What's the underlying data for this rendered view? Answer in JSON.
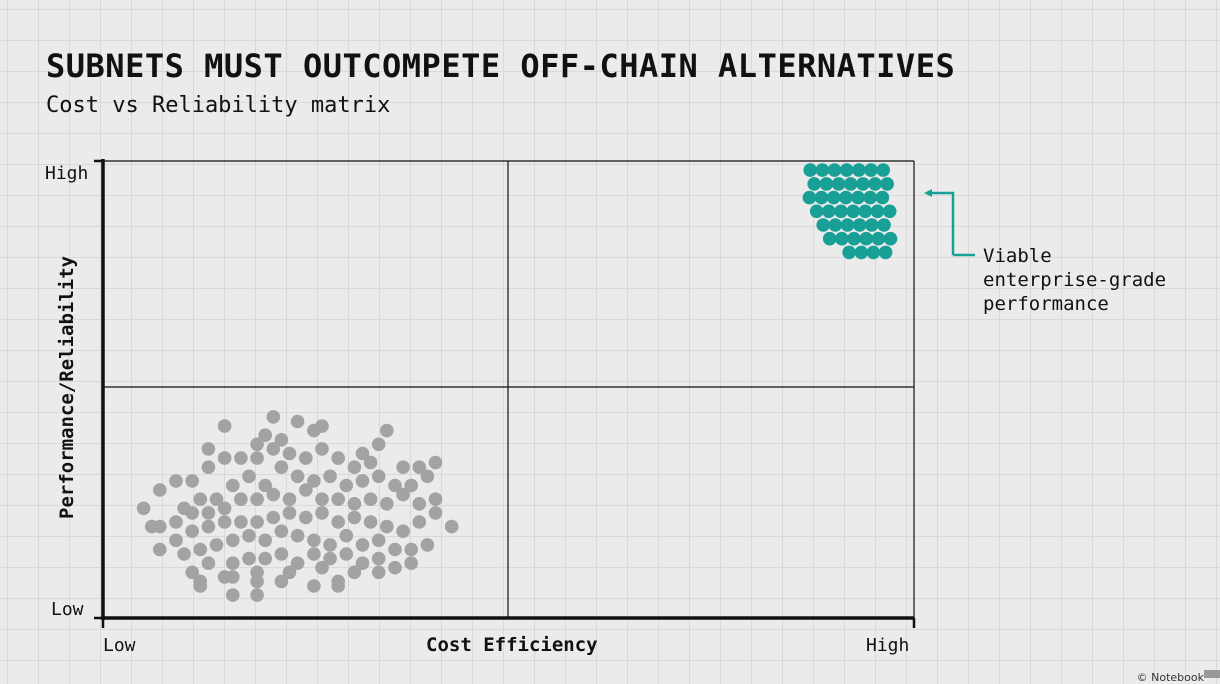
{
  "title": "SUBNETS MUST OUTCOMPETE OFF-CHAIN ALTERNATIVES",
  "subtitle": "Cost vs Reliability matrix",
  "credit": "© Notebook",
  "colors": {
    "teal": "#18a097",
    "gray": "#a3a3a3",
    "axis": "#111111",
    "background": "#ebebeb"
  },
  "chart_data": {
    "type": "scatter",
    "xlabel": "Cost Efficiency",
    "ylabel": "Performance/Reliability",
    "x_ticks": [
      "Low",
      "High"
    ],
    "y_ticks": [
      "Low",
      "High"
    ],
    "xlim": [
      0,
      100
    ],
    "ylim": [
      0,
      100
    ],
    "quadrant_split": {
      "x": 50,
      "y": 50
    },
    "annotation": {
      "lines": [
        "Viable",
        "enterprise-grade",
        "performance"
      ],
      "points_to": "teal-cluster"
    },
    "series": [
      {
        "color": "#a3a3a3",
        "points": [
          [
            15,
            42
          ],
          [
            21,
            44
          ],
          [
            19,
            38
          ],
          [
            20,
            40
          ],
          [
            22,
            39
          ],
          [
            27,
            37
          ],
          [
            26,
            41
          ],
          [
            24,
            43
          ],
          [
            27,
            42
          ],
          [
            32,
            36
          ],
          [
            35,
            41
          ],
          [
            34,
            38
          ],
          [
            5,
            24
          ],
          [
            7,
            28
          ],
          [
            9,
            30
          ],
          [
            11,
            30
          ],
          [
            13,
            37
          ],
          [
            13,
            33
          ],
          [
            15,
            35
          ],
          [
            17,
            35
          ],
          [
            19,
            35
          ],
          [
            21,
            37
          ],
          [
            23,
            36
          ],
          [
            25,
            35
          ],
          [
            29,
            35
          ],
          [
            31,
            33
          ],
          [
            33,
            34
          ],
          [
            37,
            33
          ],
          [
            39,
            33
          ],
          [
            41,
            34
          ],
          [
            6,
            20
          ],
          [
            10,
            24
          ],
          [
            12,
            26
          ],
          [
            14,
            26
          ],
          [
            16,
            29
          ],
          [
            18,
            31
          ],
          [
            20,
            29
          ],
          [
            22,
            33
          ],
          [
            24,
            31
          ],
          [
            26,
            30
          ],
          [
            28,
            31
          ],
          [
            30,
            29
          ],
          [
            32,
            30
          ],
          [
            34,
            31
          ],
          [
            36,
            29
          ],
          [
            38,
            29
          ],
          [
            40,
            31
          ],
          [
            7,
            20
          ],
          [
            9,
            21
          ],
          [
            11,
            23
          ],
          [
            13,
            23
          ],
          [
            15,
            24
          ],
          [
            17,
            26
          ],
          [
            19,
            26
          ],
          [
            21,
            27
          ],
          [
            23,
            26
          ],
          [
            25,
            28
          ],
          [
            27,
            26
          ],
          [
            29,
            26
          ],
          [
            31,
            25
          ],
          [
            33,
            26
          ],
          [
            35,
            25
          ],
          [
            37,
            27
          ],
          [
            39,
            25
          ],
          [
            41,
            26
          ],
          [
            7,
            15
          ],
          [
            9,
            17
          ],
          [
            11,
            19
          ],
          [
            13,
            20
          ],
          [
            15,
            21
          ],
          [
            17,
            21
          ],
          [
            19,
            21
          ],
          [
            21,
            22
          ],
          [
            23,
            23
          ],
          [
            25,
            22
          ],
          [
            27,
            23
          ],
          [
            29,
            21
          ],
          [
            31,
            22
          ],
          [
            33,
            21
          ],
          [
            35,
            20
          ],
          [
            37,
            19
          ],
          [
            39,
            21
          ],
          [
            41,
            23
          ],
          [
            43,
            20
          ],
          [
            10,
            14
          ],
          [
            12,
            15
          ],
          [
            14,
            16
          ],
          [
            16,
            17
          ],
          [
            18,
            18
          ],
          [
            20,
            17
          ],
          [
            22,
            19
          ],
          [
            24,
            18
          ],
          [
            26,
            17
          ],
          [
            28,
            16
          ],
          [
            30,
            18
          ],
          [
            32,
            16
          ],
          [
            34,
            17
          ],
          [
            36,
            15
          ],
          [
            38,
            15
          ],
          [
            40,
            16
          ],
          [
            11,
            10
          ],
          [
            13,
            12
          ],
          [
            16,
            12
          ],
          [
            18,
            13
          ],
          [
            20,
            13
          ],
          [
            22,
            14
          ],
          [
            24,
            12
          ],
          [
            26,
            14
          ],
          [
            28,
            13
          ],
          [
            30,
            14
          ],
          [
            32,
            12
          ],
          [
            34,
            13
          ],
          [
            36,
            11
          ],
          [
            38,
            12
          ],
          [
            12,
            8
          ],
          [
            16,
            9
          ],
          [
            19,
            10
          ],
          [
            23,
            10
          ],
          [
            27,
            11
          ],
          [
            31,
            10
          ],
          [
            34,
            10
          ],
          [
            29,
            8
          ],
          [
            12,
            7
          ],
          [
            15,
            9
          ],
          [
            19,
            8
          ],
          [
            22,
            8
          ],
          [
            16,
            5
          ],
          [
            19,
            5
          ],
          [
            26,
            7
          ],
          [
            29,
            7
          ]
        ]
      },
      {
        "color": "#18a097",
        "points": [
          [
            87.2,
            98
          ],
          [
            88.7,
            98
          ],
          [
            90.2,
            98
          ],
          [
            91.7,
            98
          ],
          [
            93.2,
            98
          ],
          [
            94.7,
            98
          ],
          [
            96.2,
            98
          ],
          [
            87.7,
            95
          ],
          [
            89.2,
            95
          ],
          [
            90.7,
            95
          ],
          [
            92.2,
            95
          ],
          [
            93.7,
            95
          ],
          [
            95.2,
            95
          ],
          [
            96.7,
            95
          ],
          [
            87.1,
            92
          ],
          [
            88.6,
            92
          ],
          [
            90.1,
            92
          ],
          [
            91.6,
            92
          ],
          [
            93.1,
            92
          ],
          [
            94.6,
            92
          ],
          [
            96.1,
            92
          ],
          [
            88.0,
            89
          ],
          [
            89.5,
            89
          ],
          [
            91.0,
            89
          ],
          [
            92.5,
            89
          ],
          [
            94.0,
            89
          ],
          [
            95.5,
            89
          ],
          [
            97.0,
            89
          ],
          [
            88.8,
            86
          ],
          [
            90.3,
            86
          ],
          [
            91.8,
            86
          ],
          [
            93.3,
            86
          ],
          [
            94.8,
            86
          ],
          [
            96.3,
            86
          ],
          [
            89.6,
            83
          ],
          [
            91.1,
            83
          ],
          [
            92.6,
            83
          ],
          [
            94.1,
            83
          ],
          [
            95.6,
            83
          ],
          [
            97.1,
            83
          ],
          [
            92.0,
            80
          ],
          [
            93.5,
            80
          ],
          [
            95.0,
            80
          ],
          [
            96.5,
            80
          ]
        ]
      }
    ]
  }
}
